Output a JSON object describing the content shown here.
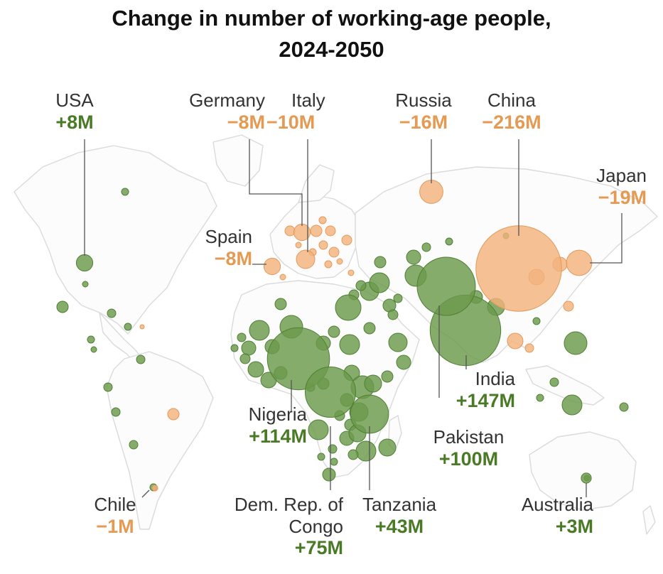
{
  "title": {
    "line1": "Change in number of working-age people,",
    "line2": "2024-2050"
  },
  "colors": {
    "growth": "#6b9a4c",
    "growth_stroke": "#4f7f34",
    "growth_text": "#4a7a26",
    "decline": "#f3b27c",
    "decline_stroke": "#e39a5a",
    "decline_text": "#e49a52",
    "land_outline": "#d9d9d9",
    "leader_line": "#555555"
  },
  "map_data": {
    "type": "proportional-symbol-map",
    "measure": "Change in number of working-age people, 2024-2050",
    "labeled_countries": [
      {
        "key": "usa",
        "name": "USA",
        "value": "+8M",
        "change_millions": 8
      },
      {
        "key": "germany",
        "name": "Germany",
        "value": "−8M",
        "change_millions": -8
      },
      {
        "key": "italy",
        "name": "Italy",
        "value": "−10M",
        "change_millions": -10
      },
      {
        "key": "russia",
        "name": "Russia",
        "value": "−16M",
        "change_millions": -16
      },
      {
        "key": "china",
        "name": "China",
        "value": "−216M",
        "change_millions": -216
      },
      {
        "key": "japan",
        "name": "Japan",
        "value": "−19M",
        "change_millions": -19
      },
      {
        "key": "spain",
        "name": "Spain",
        "value": "−8M",
        "change_millions": -8
      },
      {
        "key": "india",
        "name": "India",
        "value": "+147M",
        "change_millions": 147
      },
      {
        "key": "pakistan",
        "name": "Pakistan",
        "value": "+100M",
        "change_millions": 100
      },
      {
        "key": "nigeria",
        "name": "Nigeria",
        "value": "+114M",
        "change_millions": 114
      },
      {
        "key": "drc",
        "name": "Dem. Rep. of",
        "name2": "Congo",
        "value": "+75M",
        "change_millions": 75
      },
      {
        "key": "tanzania",
        "name": "Tanzania",
        "value": "+43M",
        "change_millions": 43
      },
      {
        "key": "chile",
        "name": "Chile",
        "value": "−1M",
        "change_millions": -1
      },
      {
        "key": "australia",
        "name": "Australia",
        "value": "+3M",
        "change_millions": 3
      }
    ]
  }
}
